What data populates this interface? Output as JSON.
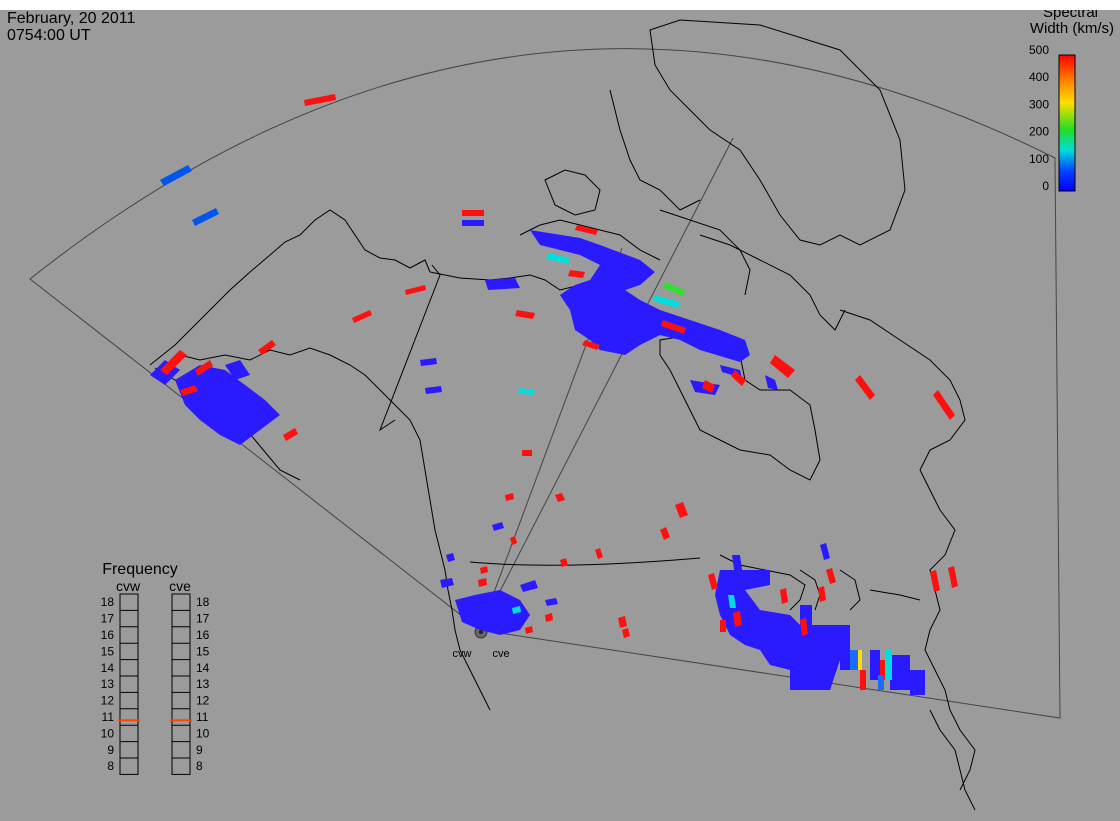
{
  "header": {
    "date": "February, 20 2011",
    "time": "0754:00 UT"
  },
  "colorbar": {
    "title_line1": "Spectral",
    "title_line2": "Width (km/s)",
    "ticks": [
      "500",
      "400",
      "300",
      "200",
      "100",
      "0"
    ],
    "stops": [
      "#ff0000",
      "#ff8800",
      "#ffdd00",
      "#22dd22",
      "#00dddd",
      "#0044ff",
      "#0000ff"
    ]
  },
  "frequency_panel": {
    "title": "Frequency",
    "radars": [
      "cvw",
      "cve"
    ],
    "levels": [
      "18",
      "17",
      "16",
      "15",
      "14",
      "13",
      "12",
      "11",
      "10",
      "9",
      "8"
    ],
    "selected": {
      "cvw": 10.8,
      "cve": 10.8
    },
    "marker_color": "#ff4400"
  },
  "radar_sites": {
    "west_label": "cvw",
    "east_label": "cve"
  },
  "colors": {
    "background": "#9b9b9b",
    "coastline": "#000000",
    "fov_outline": "#444444",
    "low_width": "#2a1aff",
    "high_width": "#ff1010",
    "mid_width": "#00dddd",
    "green": "#33dd33"
  }
}
